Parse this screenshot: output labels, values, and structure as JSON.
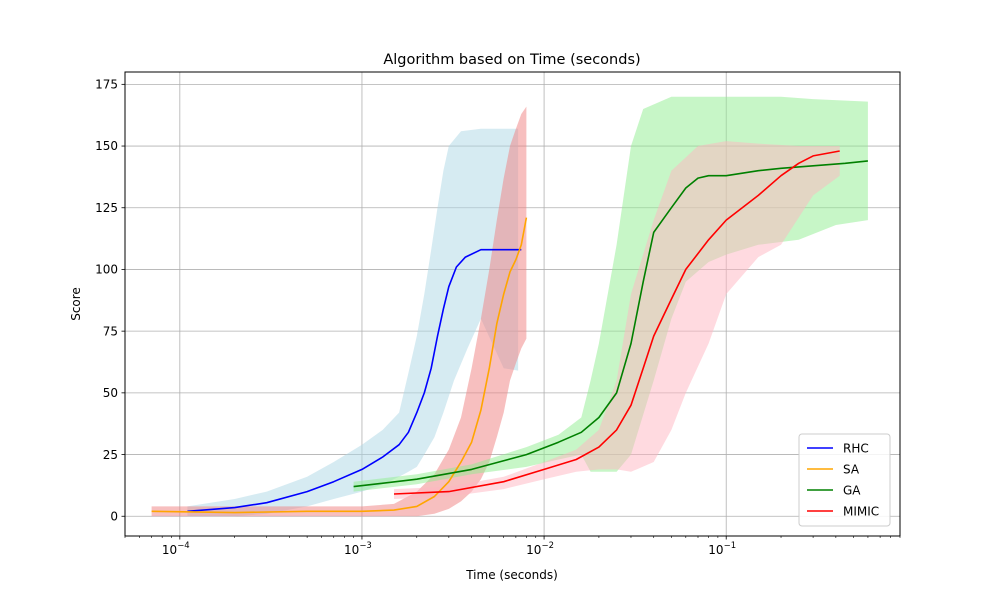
{
  "chart_data": {
    "type": "line",
    "title": "Algorithm based on Time (seconds)",
    "xlabel": "Time (seconds)",
    "ylabel": "Score",
    "xscale": "log",
    "xlim": [
      5e-05,
      0.9
    ],
    "ylim": [
      -8,
      180
    ],
    "grid": true,
    "legend_position": "lower-right",
    "x_tick_labels": [
      {
        "value": 0.0001,
        "base": "10",
        "exp": "−4"
      },
      {
        "value": 0.001,
        "base": "10",
        "exp": "−3"
      },
      {
        "value": 0.01,
        "base": "10",
        "exp": "−2"
      },
      {
        "value": 0.1,
        "base": "10",
        "exp": "−1"
      }
    ],
    "y_ticks": [
      0,
      25,
      50,
      75,
      100,
      125,
      150,
      175
    ],
    "series": [
      {
        "name": "RHC",
        "color": "#0000ff",
        "band_color": "#add8e6",
        "points": [
          [
            0.00011,
            2
          ],
          [
            0.0002,
            3.5
          ],
          [
            0.0003,
            5.5
          ],
          [
            0.0005,
            10
          ],
          [
            0.0007,
            14
          ],
          [
            0.001,
            19
          ],
          [
            0.0013,
            24
          ],
          [
            0.0016,
            29
          ],
          [
            0.0018,
            34
          ],
          [
            0.002,
            42
          ],
          [
            0.0022,
            50
          ],
          [
            0.0024,
            60
          ],
          [
            0.0026,
            73
          ],
          [
            0.0028,
            84
          ],
          [
            0.003,
            93
          ],
          [
            0.0033,
            101
          ],
          [
            0.0037,
            105
          ],
          [
            0.0045,
            108
          ],
          [
            0.0075,
            108
          ]
        ],
        "upper": [
          [
            0.00011,
            4
          ],
          [
            0.0002,
            7
          ],
          [
            0.0003,
            10
          ],
          [
            0.0005,
            16
          ],
          [
            0.0007,
            22
          ],
          [
            0.001,
            29
          ],
          [
            0.0013,
            35
          ],
          [
            0.0016,
            42
          ],
          [
            0.0018,
            58
          ],
          [
            0.002,
            73
          ],
          [
            0.0022,
            90
          ],
          [
            0.0024,
            108
          ],
          [
            0.0026,
            125
          ],
          [
            0.0028,
            140
          ],
          [
            0.003,
            150
          ],
          [
            0.0035,
            156
          ],
          [
            0.0045,
            157
          ],
          [
            0.0072,
            157
          ]
        ],
        "lower": [
          [
            0.00011,
            0
          ],
          [
            0.0002,
            0
          ],
          [
            0.0003,
            1
          ],
          [
            0.0005,
            4
          ],
          [
            0.0007,
            7
          ],
          [
            0.001,
            10
          ],
          [
            0.0013,
            13
          ],
          [
            0.0016,
            16
          ],
          [
            0.0018,
            18
          ],
          [
            0.002,
            20
          ],
          [
            0.0022,
            25
          ],
          [
            0.0025,
            32
          ],
          [
            0.0028,
            42
          ],
          [
            0.0032,
            55
          ],
          [
            0.0038,
            68
          ],
          [
            0.0045,
            80
          ],
          [
            0.006,
            60
          ],
          [
            0.0072,
            59
          ]
        ]
      },
      {
        "name": "SA",
        "color": "#ffa500",
        "band_color": "#f08080",
        "points": [
          [
            7e-05,
            2
          ],
          [
            0.0002,
            1.5
          ],
          [
            0.0005,
            2
          ],
          [
            0.001,
            2
          ],
          [
            0.0015,
            2.5
          ],
          [
            0.002,
            4
          ],
          [
            0.0025,
            8
          ],
          [
            0.003,
            14
          ],
          [
            0.0035,
            22
          ],
          [
            0.004,
            30
          ],
          [
            0.0045,
            43
          ],
          [
            0.005,
            60
          ],
          [
            0.0055,
            78
          ],
          [
            0.006,
            90
          ],
          [
            0.0065,
            99
          ],
          [
            0.007,
            104
          ],
          [
            0.0075,
            110
          ],
          [
            0.008,
            121
          ]
        ],
        "upper": [
          [
            7e-05,
            4
          ],
          [
            0.0002,
            4
          ],
          [
            0.0005,
            4
          ],
          [
            0.001,
            4
          ],
          [
            0.0015,
            5
          ],
          [
            0.002,
            10
          ],
          [
            0.0025,
            17
          ],
          [
            0.003,
            27
          ],
          [
            0.0035,
            40
          ],
          [
            0.004,
            60
          ],
          [
            0.0045,
            80
          ],
          [
            0.005,
            100
          ],
          [
            0.0055,
            120
          ],
          [
            0.006,
            137
          ],
          [
            0.0065,
            150
          ],
          [
            0.007,
            157
          ],
          [
            0.0075,
            163
          ],
          [
            0.008,
            166
          ]
        ],
        "lower": [
          [
            7e-05,
            0
          ],
          [
            0.0002,
            0
          ],
          [
            0.0005,
            0
          ],
          [
            0.001,
            0
          ],
          [
            0.0015,
            0
          ],
          [
            0.002,
            0
          ],
          [
            0.0025,
            1
          ],
          [
            0.003,
            3
          ],
          [
            0.0035,
            6
          ],
          [
            0.004,
            10
          ],
          [
            0.0045,
            15
          ],
          [
            0.005,
            22
          ],
          [
            0.0055,
            32
          ],
          [
            0.006,
            42
          ],
          [
            0.0065,
            55
          ],
          [
            0.007,
            62
          ],
          [
            0.0075,
            68
          ],
          [
            0.008,
            72
          ]
        ]
      },
      {
        "name": "GA",
        "color": "#008000",
        "band_color": "#90ee90",
        "points": [
          [
            0.0009,
            12
          ],
          [
            0.002,
            15
          ],
          [
            0.004,
            19
          ],
          [
            0.008,
            25
          ],
          [
            0.012,
            30
          ],
          [
            0.016,
            34
          ],
          [
            0.02,
            40
          ],
          [
            0.025,
            50
          ],
          [
            0.03,
            70
          ],
          [
            0.035,
            95
          ],
          [
            0.04,
            115
          ],
          [
            0.05,
            125
          ],
          [
            0.06,
            133
          ],
          [
            0.07,
            137
          ],
          [
            0.08,
            138
          ],
          [
            0.1,
            138
          ],
          [
            0.15,
            140
          ],
          [
            0.2,
            141
          ],
          [
            0.3,
            142
          ],
          [
            0.45,
            143
          ],
          [
            0.6,
            144
          ]
        ],
        "upper": [
          [
            0.0009,
            14
          ],
          [
            0.002,
            17
          ],
          [
            0.004,
            21
          ],
          [
            0.008,
            28
          ],
          [
            0.012,
            33
          ],
          [
            0.016,
            40
          ],
          [
            0.018,
            55
          ],
          [
            0.02,
            70
          ],
          [
            0.025,
            110
          ],
          [
            0.03,
            150
          ],
          [
            0.035,
            165
          ],
          [
            0.05,
            170
          ],
          [
            0.1,
            170
          ],
          [
            0.2,
            170
          ],
          [
            0.3,
            169
          ],
          [
            0.6,
            168
          ]
        ],
        "lower": [
          [
            0.0009,
            10
          ],
          [
            0.002,
            13
          ],
          [
            0.004,
            17
          ],
          [
            0.008,
            20
          ],
          [
            0.012,
            23
          ],
          [
            0.016,
            25
          ],
          [
            0.018,
            18
          ],
          [
            0.02,
            18
          ],
          [
            0.025,
            18
          ],
          [
            0.03,
            25
          ],
          [
            0.04,
            55
          ],
          [
            0.05,
            80
          ],
          [
            0.06,
            95
          ],
          [
            0.08,
            103
          ],
          [
            0.1,
            106
          ],
          [
            0.15,
            110
          ],
          [
            0.25,
            112
          ],
          [
            0.4,
            118
          ],
          [
            0.6,
            120
          ]
        ]
      },
      {
        "name": "MIMIC",
        "color": "#ff0000",
        "band_color": "#ffb6c1",
        "points": [
          [
            0.0015,
            9
          ],
          [
            0.003,
            10
          ],
          [
            0.006,
            14
          ],
          [
            0.01,
            19
          ],
          [
            0.015,
            23
          ],
          [
            0.02,
            28
          ],
          [
            0.025,
            35
          ],
          [
            0.03,
            45
          ],
          [
            0.035,
            60
          ],
          [
            0.04,
            73
          ],
          [
            0.05,
            88
          ],
          [
            0.06,
            100
          ],
          [
            0.08,
            112
          ],
          [
            0.1,
            120
          ],
          [
            0.15,
            130
          ],
          [
            0.2,
            138
          ],
          [
            0.25,
            143
          ],
          [
            0.3,
            146
          ],
          [
            0.42,
            148
          ]
        ],
        "upper": [
          [
            0.0015,
            11
          ],
          [
            0.003,
            12
          ],
          [
            0.006,
            16
          ],
          [
            0.01,
            22
          ],
          [
            0.015,
            27
          ],
          [
            0.02,
            35
          ],
          [
            0.025,
            55
          ],
          [
            0.03,
            90
          ],
          [
            0.04,
            120
          ],
          [
            0.05,
            140
          ],
          [
            0.07,
            150
          ],
          [
            0.1,
            152
          ],
          [
            0.15,
            151
          ],
          [
            0.25,
            150
          ],
          [
            0.42,
            150
          ]
        ],
        "lower": [
          [
            0.0015,
            7
          ],
          [
            0.003,
            8
          ],
          [
            0.006,
            11
          ],
          [
            0.01,
            15
          ],
          [
            0.015,
            18
          ],
          [
            0.02,
            19
          ],
          [
            0.025,
            19
          ],
          [
            0.03,
            18
          ],
          [
            0.04,
            22
          ],
          [
            0.05,
            35
          ],
          [
            0.06,
            50
          ],
          [
            0.08,
            70
          ],
          [
            0.1,
            90
          ],
          [
            0.15,
            105
          ],
          [
            0.2,
            110
          ],
          [
            0.3,
            130
          ],
          [
            0.42,
            138
          ]
        ]
      }
    ]
  }
}
